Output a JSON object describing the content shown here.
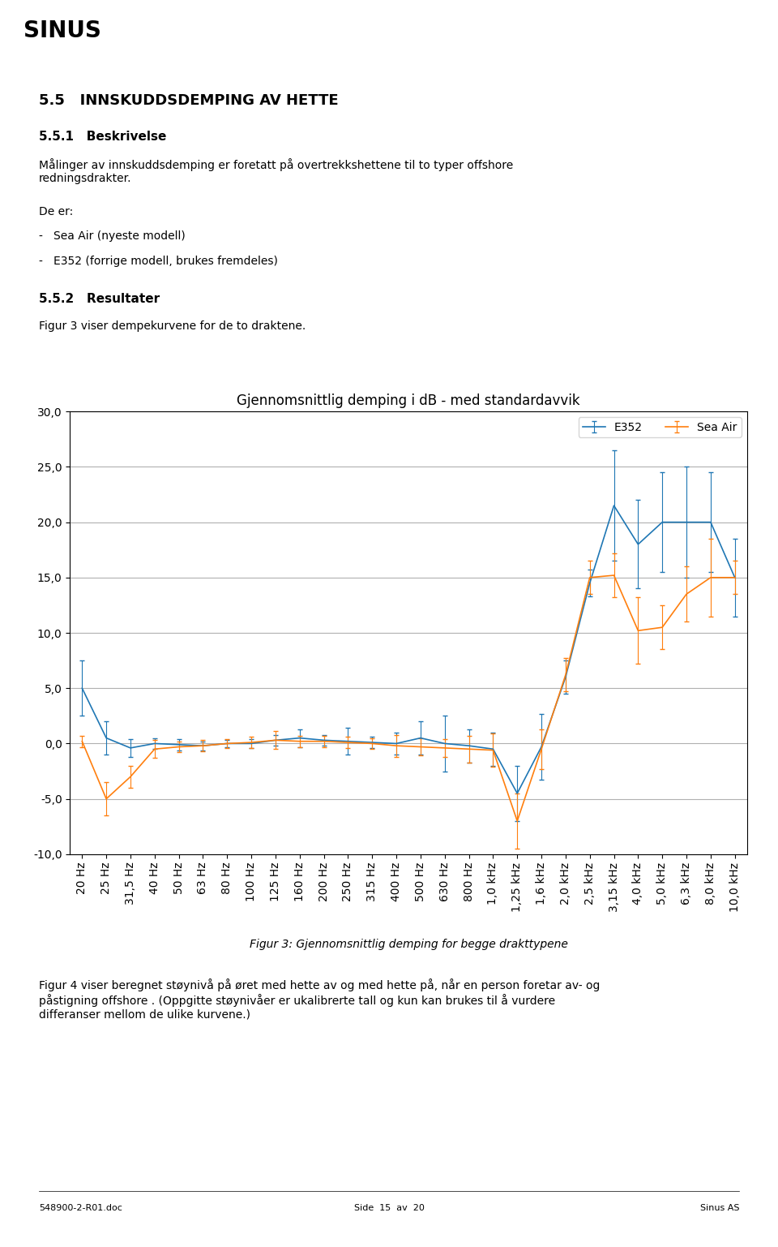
{
  "chart_data": {
    "type": "line",
    "title": "Gjennomsnittlig demping i dB - med standardavvik",
    "categories": [
      "20 Hz",
      "25 Hz",
      "31,5 Hz",
      "40 Hz",
      "50 Hz",
      "63 Hz",
      "80 Hz",
      "100 Hz",
      "125 Hz",
      "160 Hz",
      "200 Hz",
      "250 Hz",
      "315 Hz",
      "400 Hz",
      "500 Hz",
      "630 Hz",
      "800 Hz",
      "1,0 kHz",
      "1,25 kHz",
      "1,6 kHz",
      "2,0 kHz",
      "2,5 kHz",
      "3,15 kHz",
      "4,0 kHz",
      "5,0 kHz",
      "6,3 kHz",
      "8,0 kHz",
      "10,0 kHz"
    ],
    "series": [
      {
        "name": "E352",
        "values": [
          5.0,
          0.5,
          -0.4,
          0.0,
          -0.1,
          -0.2,
          0.0,
          0.0,
          0.3,
          0.5,
          0.3,
          0.2,
          0.1,
          0.0,
          0.5,
          0.0,
          -0.2,
          -0.5,
          -4.5,
          -0.3,
          6.0,
          14.5,
          21.5,
          18.0,
          20.0,
          20.0,
          20.0,
          15.0
        ],
        "errors": [
          2.5,
          1.5,
          0.8,
          0.5,
          0.5,
          0.4,
          0.3,
          0.4,
          0.5,
          0.8,
          0.5,
          1.2,
          0.5,
          1.0,
          1.5,
          2.5,
          1.5,
          1.5,
          2.5,
          3.0,
          1.5,
          1.2,
          5.0,
          4.0,
          4.5,
          5.0,
          4.5,
          3.5
        ]
      },
      {
        "name": "Sea Air",
        "values": [
          0.2,
          -5.0,
          -3.0,
          -0.5,
          -0.3,
          -0.2,
          0.0,
          0.1,
          0.3,
          0.2,
          0.2,
          0.1,
          0.0,
          -0.2,
          -0.3,
          -0.4,
          -0.5,
          -0.6,
          -7.0,
          -0.5,
          6.2,
          15.0,
          15.2,
          10.2,
          10.5,
          13.5,
          15.0,
          15.0
        ],
        "errors": [
          0.5,
          1.5,
          1.0,
          0.8,
          0.5,
          0.5,
          0.4,
          0.5,
          0.8,
          0.5,
          0.5,
          0.5,
          0.5,
          1.0,
          0.8,
          0.8,
          1.2,
          1.5,
          2.5,
          1.8,
          1.5,
          1.5,
          2.0,
          3.0,
          2.0,
          2.5,
          3.5,
          1.5
        ]
      }
    ],
    "ylim": [
      -10,
      30
    ],
    "yticks": [
      {
        "value": -10,
        "label": "-10,0"
      },
      {
        "value": -5,
        "label": "-5,0"
      },
      {
        "value": 0,
        "label": "0,0"
      },
      {
        "value": 5,
        "label": "5,0"
      },
      {
        "value": 10,
        "label": "10,0"
      },
      {
        "value": 15,
        "label": "15,0"
      },
      {
        "value": 20,
        "label": "20,0"
      },
      {
        "value": 25,
        "label": "25,0"
      },
      {
        "value": 30,
        "label": "30,0"
      }
    ],
    "grid": true,
    "legend": "upper right",
    "annotations": [
      "SINUS",
      "5.5   INNSKUDDSDEMPING AV HETTE",
      "5.5.1   Beskrivelse",
      "Målinger av innskuddsdemping er foretatt på overtrekkshettene til to typer offshore\nredningsdrakter.",
      "De er:",
      "-   Sea Air (nyeste modell)",
      "-   E352 (forrige modell, brukes fremdeles)",
      "5.5.2   Resultater",
      "Figur 3 viser dempekurvene for de to draktene.",
      "Figur 3: Gjennomsnittlig demping for begge drakttypene",
      "Figur 4 viser beregnet støynivå på øret med hette av og med hette på, når en person foretar av- og\npåstigning offshore . (Oppgitte støynivåer er ukalibrerte tall og kun kan brukes til å vurdere\ndifferanser mellom de ulike kurvene.)",
      "548900-2-R01.doc",
      "Side  15  av  20",
      "Sinus AS"
    ]
  }
}
